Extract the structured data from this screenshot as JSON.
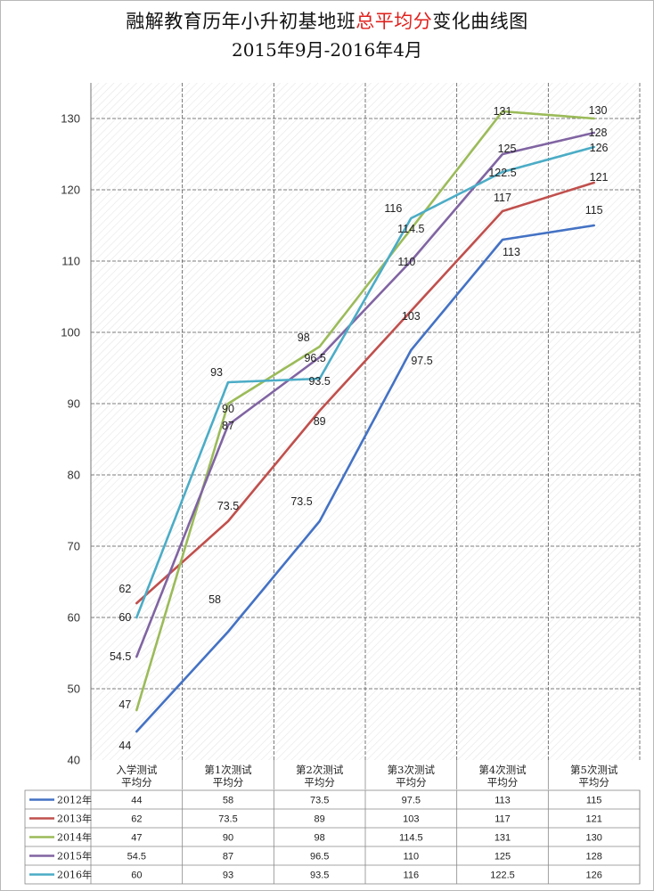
{
  "title": {
    "part1": "融解教育历年小升初基地班",
    "highlight": "总平均分",
    "part2": "变化曲线图",
    "subtitle": "2015年9月-2016年4月",
    "highlight_color": "#e0201c"
  },
  "chart_data": {
    "type": "line",
    "categories": [
      [
        "入学测试",
        "平均分"
      ],
      [
        "第1次测试",
        "平均分"
      ],
      [
        "第2次测试",
        "平均分"
      ],
      [
        "第3次测试",
        "平均分"
      ],
      [
        "第4次测试",
        "平均分"
      ],
      [
        "第5次测试",
        "平均分"
      ]
    ],
    "ylim": [
      40,
      130
    ],
    "yticks": [
      40,
      50,
      60,
      70,
      80,
      90,
      100,
      110,
      120,
      130
    ],
    "grid": true,
    "legend": "data table below chart",
    "series": [
      {
        "name": "2012年",
        "color": "#4472c4",
        "values": [
          44,
          58,
          73.5,
          97.5,
          113,
          115
        ]
      },
      {
        "name": "2013年",
        "color": "#c0504d",
        "values": [
          62,
          73.5,
          89,
          103,
          117,
          121
        ]
      },
      {
        "name": "2014年",
        "color": "#9bbb59",
        "values": [
          47,
          90,
          98,
          114.5,
          131,
          130
        ]
      },
      {
        "name": "2015年",
        "color": "#8064a2",
        "values": [
          54.5,
          87,
          96.5,
          110,
          125,
          128
        ]
      },
      {
        "name": "2016年",
        "color": "#4bacc6",
        "values": [
          60,
          93,
          93.5,
          116,
          122.5,
          126
        ]
      }
    ]
  }
}
